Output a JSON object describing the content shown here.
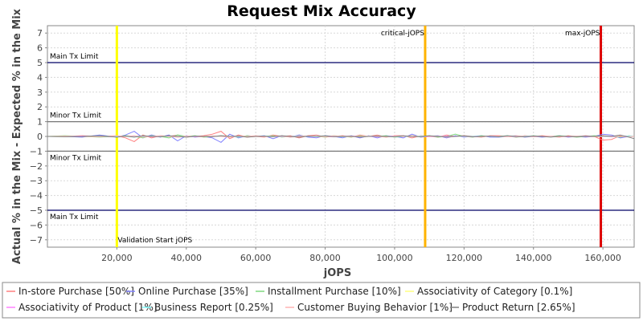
{
  "chart_data": {
    "type": "line",
    "title": "Request Mix Accuracy",
    "xlabel": "jOPS",
    "ylabel": "Actual % in the Mix - Expected % in the Mix",
    "xlim": [
      0,
      169000
    ],
    "ylim": [
      -7.5,
      7.5
    ],
    "x_ticks": [
      20000,
      40000,
      60000,
      80000,
      100000,
      120000,
      140000,
      160000
    ],
    "x_tick_labels": [
      "20,000",
      "40,000",
      "60,000",
      "80,000",
      "100,000",
      "120,000",
      "140,000",
      "160,000"
    ],
    "y_ticks": [
      -7,
      -6,
      -5,
      -4,
      -3,
      -2,
      -1,
      0,
      1,
      2,
      3,
      4,
      5,
      6,
      7
    ],
    "y_tick_labels": [
      "−7",
      "−6",
      "−5",
      "−4",
      "−3",
      "−2",
      "−1",
      "0",
      "1",
      "2",
      "3",
      "4",
      "5",
      "6",
      "7"
    ],
    "grid": true,
    "legend_position": "bottom",
    "horizontal_lines": [
      {
        "label": "Main Tx Limit",
        "y": 5,
        "color": "#000066"
      },
      {
        "label": "Minor Tx Limit",
        "y": 1,
        "color": "#777777"
      },
      {
        "label": "Minor Tx Limit",
        "y": -1,
        "color": "#777777"
      },
      {
        "label": "Main Tx Limit",
        "y": -5,
        "color": "#000066"
      }
    ],
    "vertical_lines": [
      {
        "label": "Validation Start jOPS",
        "x": 20000,
        "color": "#ffff00"
      },
      {
        "label": "critical-jOPS",
        "x": 108800,
        "color": "#ffb300"
      },
      {
        "label": "max-jOPS",
        "x": 159400,
        "color": "#dd0000"
      }
    ],
    "x": [
      0,
      5000,
      10000,
      15000,
      20000,
      22500,
      25000,
      27500,
      30000,
      32500,
      35000,
      37500,
      40000,
      42500,
      45000,
      47500,
      50000,
      52500,
      55000,
      57500,
      60000,
      62500,
      65000,
      67500,
      70000,
      72500,
      75000,
      77500,
      80000,
      82500,
      85000,
      87500,
      90000,
      92500,
      95000,
      97500,
      100000,
      102500,
      105000,
      107500,
      110000,
      112500,
      115000,
      117500,
      120000,
      122500,
      125000,
      127500,
      130000,
      132500,
      135000,
      137500,
      140000,
      142500,
      145000,
      147500,
      150000,
      152500,
      155000,
      157500,
      160000,
      162500,
      165000,
      167500,
      169000
    ],
    "series": [
      {
        "name": "In-store Purchase [50%]",
        "color": "#ff7f7f",
        "values": [
          0,
          0,
          0.05,
          0,
          0.05,
          -0.1,
          -0.35,
          0.1,
          -0.1,
          0.05,
          0,
          0.1,
          -0.05,
          0,
          0.05,
          0.15,
          0.35,
          -0.15,
          0.1,
          -0.05,
          0,
          -0.05,
          0.1,
          0,
          0.05,
          -0.1,
          0.05,
          0.1,
          -0.05,
          0,
          0.05,
          -0.05,
          0.1,
          0,
          0.1,
          -0.05,
          0.05,
          0.05,
          -0.1,
          0.05,
          0,
          -0.05,
          0.1,
          0,
          0.05,
          0,
          -0.05,
          0.05,
          0.05,
          0,
          -0.05,
          0.05,
          0,
          0.05,
          0,
          -0.05,
          0.05,
          0,
          0.05,
          0,
          -0.25,
          -0.2,
          0.05,
          0,
          0
        ]
      },
      {
        "name": "Online Purchase [35%]",
        "color": "#8080ff",
        "values": [
          0,
          0,
          -0.05,
          0.1,
          -0.05,
          0.1,
          0.35,
          -0.1,
          0.1,
          -0.05,
          0.1,
          -0.3,
          0.05,
          -0.05,
          0,
          -0.1,
          -0.4,
          0.15,
          -0.1,
          0.05,
          0,
          0.05,
          -0.15,
          0.05,
          -0.05,
          0.1,
          -0.05,
          -0.1,
          0.05,
          0,
          -0.1,
          0.05,
          -0.1,
          0.05,
          -0.1,
          0.05,
          0,
          -0.1,
          0.15,
          -0.05,
          0,
          0.05,
          -0.1,
          0.05,
          -0.05,
          0,
          0.05,
          -0.05,
          -0.05,
          0,
          0.05,
          -0.05,
          0,
          -0.05,
          0,
          0.05,
          -0.05,
          0,
          -0.05,
          0,
          0.15,
          0.1,
          -0.1,
          0,
          0
        ]
      },
      {
        "name": "Installment Purchase [10%]",
        "color": "#7fd97f",
        "values": [
          0,
          0.05,
          0,
          -0.05,
          0,
          0.05,
          0,
          -0.1,
          0.05,
          0,
          -0.1,
          0.1,
          0,
          0.05,
          -0.05,
          0,
          0.05,
          0,
          -0.05,
          0.05,
          0,
          0,
          0.05,
          -0.05,
          0,
          0.05,
          0,
          0,
          -0.05,
          0.05,
          0,
          -0.05,
          0.05,
          0,
          0,
          0.05,
          -0.05,
          0,
          0.05,
          0,
          0.05,
          -0.05,
          0,
          0.15,
          0,
          -0.05,
          0.05,
          0,
          0,
          0.05,
          -0.05,
          0,
          0.05,
          0,
          0,
          0.05,
          0,
          -0.05,
          0,
          0.05,
          0,
          0,
          -0.05,
          0.05,
          0
        ]
      },
      {
        "name": "Associativity of Category [0.1%]",
        "color": "#ffff80",
        "values": [
          0,
          0,
          0,
          0,
          0,
          0,
          0,
          0,
          0,
          0,
          0,
          0,
          0,
          0,
          0,
          0,
          0,
          0,
          0,
          0,
          0,
          0,
          0,
          0,
          0,
          0,
          0,
          0,
          0,
          0,
          0,
          0,
          0,
          0,
          0,
          0,
          0,
          0,
          0,
          0,
          0,
          0,
          0,
          0,
          0,
          0,
          0,
          0,
          0,
          0,
          0,
          0,
          0,
          0,
          0,
          0,
          0,
          0,
          0,
          0,
          0,
          0,
          0,
          0,
          0
        ]
      },
      {
        "name": "Associativity of Product [1%]",
        "color": "#ff80ff",
        "values": [
          0,
          0,
          0.02,
          0,
          -0.02,
          0,
          0.02,
          0,
          -0.02,
          0,
          0.02,
          0,
          0,
          -0.02,
          0,
          0.02,
          0,
          0,
          -0.02,
          0,
          0.02,
          0,
          0,
          -0.02,
          0,
          0.02,
          0,
          0,
          0,
          -0.02,
          0,
          0.02,
          0,
          0,
          -0.02,
          0,
          0.02,
          0,
          0,
          0,
          -0.02,
          0,
          0.02,
          0,
          0,
          -0.02,
          0,
          0.02,
          0,
          0,
          -0.02,
          0,
          0.02,
          0,
          0,
          0,
          -0.02,
          0,
          0.02,
          0,
          0,
          -0.02,
          0,
          0.02,
          0
        ]
      },
      {
        "name": "Business Report [0.25%]",
        "color": "#80ffff",
        "values": [
          0,
          0,
          0,
          0.02,
          0,
          0,
          -0.02,
          0,
          0,
          0.02,
          0,
          0,
          -0.02,
          0,
          0,
          0.02,
          0,
          0,
          -0.02,
          0,
          0,
          0.02,
          0,
          0,
          -0.02,
          0,
          0,
          0.02,
          0,
          0,
          -0.02,
          0,
          0,
          0.02,
          0,
          0,
          -0.02,
          0,
          0,
          0.02,
          0,
          0,
          -0.02,
          0,
          0,
          0.02,
          0,
          0,
          -0.02,
          0,
          0,
          0.02,
          0,
          0,
          -0.02,
          0,
          0,
          0.02,
          0,
          0,
          -0.02,
          0,
          0,
          0.02,
          0
        ]
      },
      {
        "name": "Customer Buying Behavior [1%]",
        "color": "#ffb3b3",
        "values": [
          0,
          0.02,
          0,
          -0.02,
          0.05,
          0,
          0.05,
          -0.05,
          0,
          0.05,
          0,
          -0.05,
          0.02,
          0,
          -0.02,
          0.05,
          0,
          -0.05,
          0.02,
          0,
          0.05,
          -0.02,
          0,
          0.02,
          -0.05,
          0,
          0.02,
          0,
          -0.02,
          0.05,
          0,
          -0.02,
          0,
          0.02,
          0,
          -0.05,
          0.02,
          0,
          0.05,
          -0.02,
          0,
          0.02,
          -0.05,
          0,
          0.02,
          0,
          -0.02,
          0.02,
          0,
          -0.02,
          0.05,
          0,
          -0.02,
          0,
          0.02,
          -0.02,
          0,
          0.02,
          0,
          -0.02,
          0,
          0.02,
          0,
          -0.02,
          0
        ]
      },
      {
        "name": "Product Return [2.65%]",
        "color": "#808080",
        "values": [
          0,
          -0.02,
          0,
          0.05,
          -0.05,
          0.02,
          -0.05,
          0.05,
          0,
          -0.02,
          0.05,
          0,
          -0.05,
          0.02,
          0,
          -0.02,
          0.05,
          0,
          0.02,
          -0.05,
          0,
          0.02,
          -0.02,
          0.05,
          0,
          -0.05,
          0.02,
          0,
          0.05,
          -0.02,
          0,
          0.02,
          -0.05,
          0,
          0.02,
          0,
          -0.02,
          0.05,
          0,
          -0.02,
          0.05,
          0,
          -0.02,
          0,
          0.05,
          -0.02,
          0,
          0.02,
          -0.02,
          0.05,
          0,
          -0.02,
          0.02,
          0,
          -0.05,
          0.02,
          0,
          -0.02,
          0.02,
          0,
          0.05,
          0,
          0.1,
          -0.05,
          -0.15
        ]
      }
    ]
  }
}
